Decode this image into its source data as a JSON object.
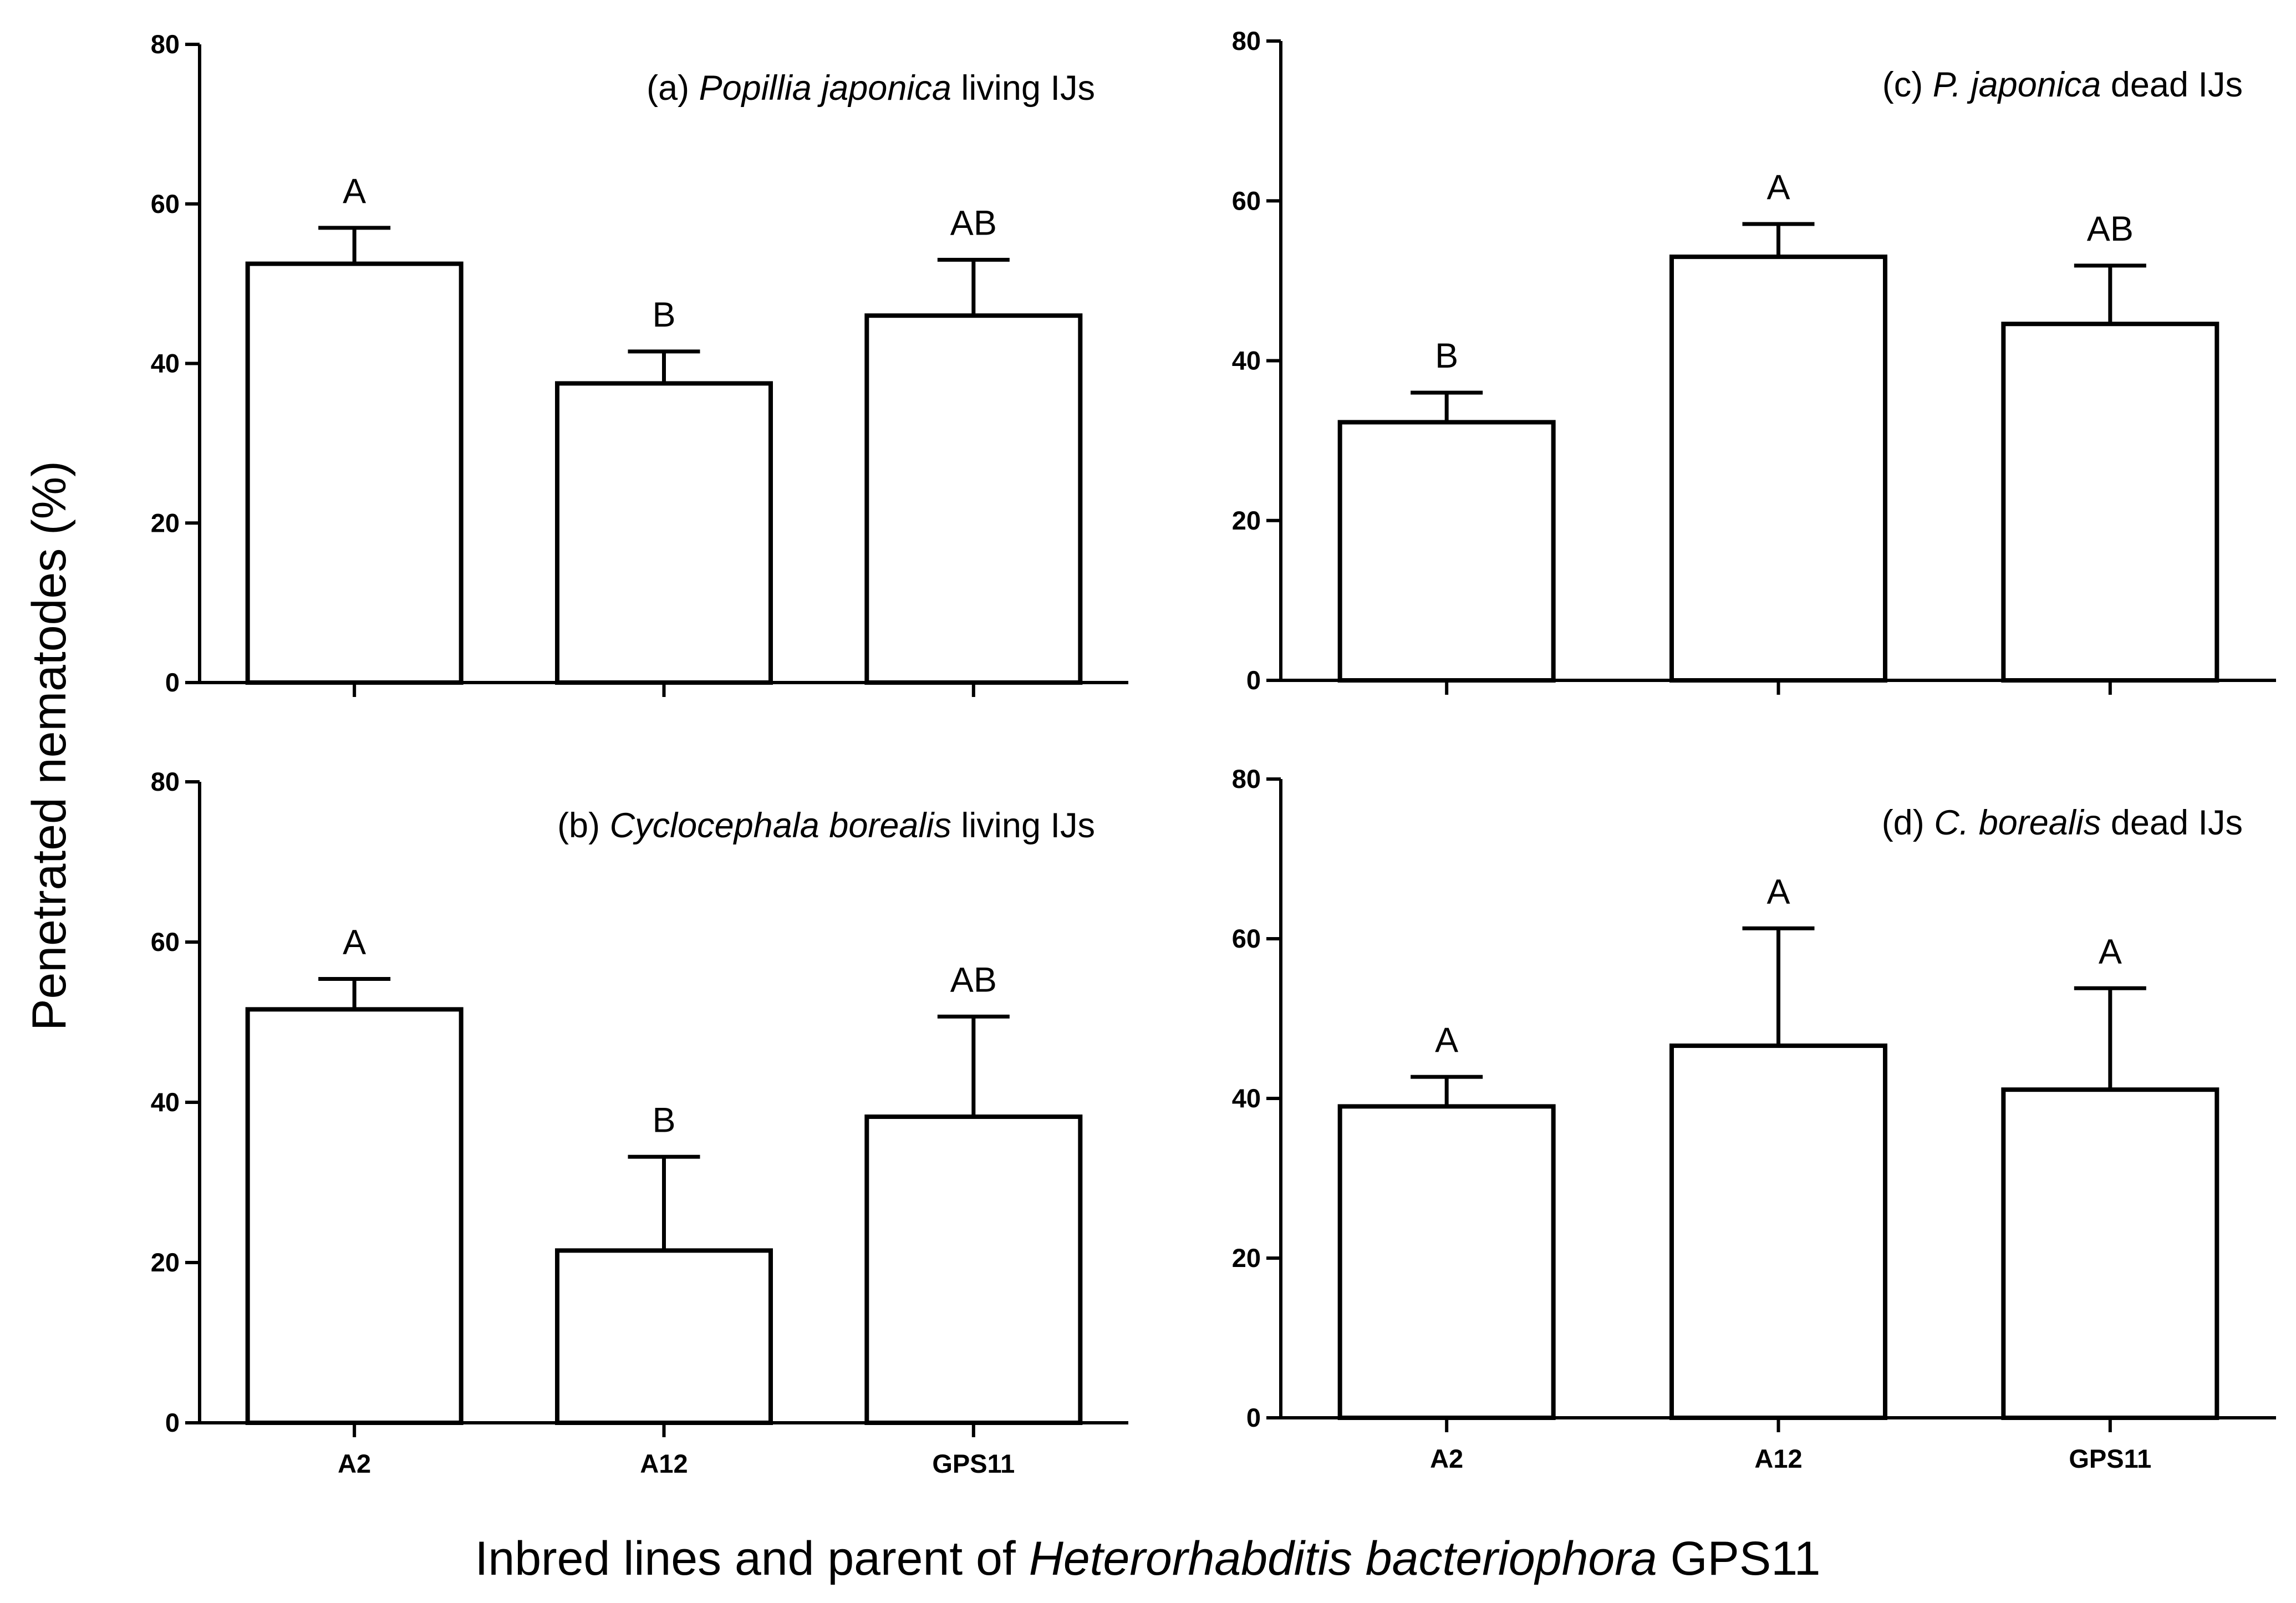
{
  "ylabel": "Penetrated nematodes (%)",
  "xlabel": {
    "prefix": "Inbred lines and parent of ",
    "species": "Heterorhabditis bacteriophora",
    "suffix": " GPS11"
  },
  "colors": {
    "bar_fill": "#ffffff",
    "stroke": "#000000"
  },
  "chart_data": [
    {
      "type": "bar",
      "panel": "a",
      "title": {
        "prefix": "(a) ",
        "species": "Popillia japonica",
        "suffix": " living IJs"
      },
      "categories": [
        "A2",
        "A12",
        "GPS11"
      ],
      "show_category_labels": false,
      "values": [
        52.5,
        37.5,
        46.0
      ],
      "errors": [
        4.5,
        4.0,
        7.0
      ],
      "significance": [
        "A",
        "B",
        "AB"
      ],
      "ylim": [
        0,
        80
      ],
      "yticks": [
        0,
        20,
        40,
        60,
        80
      ]
    },
    {
      "type": "bar",
      "panel": "c",
      "title": {
        "prefix": "(c) ",
        "species": "P. japonica",
        "suffix": " dead IJs"
      },
      "categories": [
        "A2",
        "A12",
        "GPS11"
      ],
      "show_category_labels": false,
      "values": [
        32.3,
        53.0,
        44.6
      ],
      "errors": [
        3.7,
        4.1,
        7.3
      ],
      "significance": [
        "B",
        "A",
        "AB"
      ],
      "ylim": [
        0,
        80
      ],
      "yticks": [
        0,
        20,
        40,
        60,
        80
      ]
    },
    {
      "type": "bar",
      "panel": "b",
      "title": {
        "prefix": "(b) ",
        "species": "Cyclocephala borealis",
        "suffix": " living IJs"
      },
      "categories": [
        "A2",
        "A12",
        "GPS11"
      ],
      "show_category_labels": true,
      "values": [
        51.6,
        21.5,
        38.2
      ],
      "errors": [
        3.8,
        11.7,
        12.5
      ],
      "significance": [
        "A",
        "B",
        "AB"
      ],
      "ylim": [
        0,
        80
      ],
      "yticks": [
        0,
        20,
        40,
        60,
        80
      ]
    },
    {
      "type": "bar",
      "panel": "d",
      "title": {
        "prefix": "(d) ",
        "species": "C. borealis",
        "suffix": " dead IJs"
      },
      "categories": [
        "A2",
        "A12",
        "GPS11"
      ],
      "show_category_labels": true,
      "values": [
        39.0,
        46.6,
        41.1
      ],
      "errors": [
        3.7,
        14.7,
        12.7
      ],
      "significance": [
        "A",
        "A",
        "A"
      ],
      "ylim": [
        0,
        80
      ],
      "yticks": [
        0,
        20,
        40,
        60,
        80
      ]
    }
  ]
}
